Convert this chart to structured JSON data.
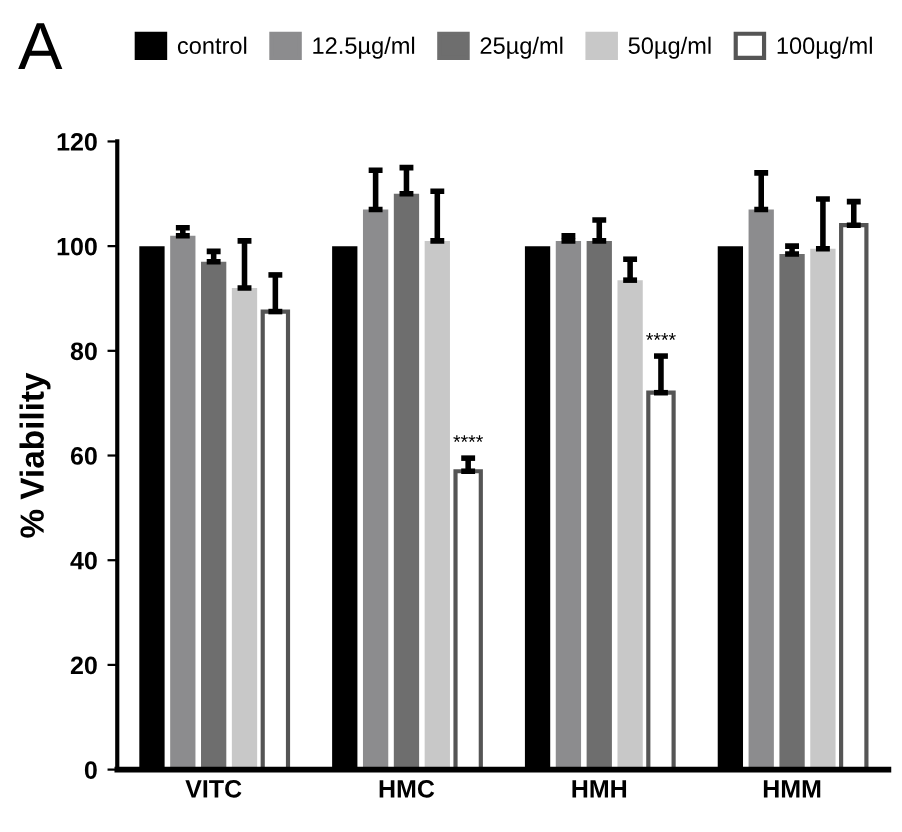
{
  "chart_data": {
    "type": "bar",
    "title": "A",
    "ylabel": "% Viability",
    "categories": [
      "VITC",
      "HMC",
      "HMH",
      "HMM"
    ],
    "series": [
      {
        "name": "control",
        "color": "#000000",
        "values": [
          100,
          100,
          100,
          100
        ]
      },
      {
        "name": "12.5µg/ml",
        "color": "#8c8c8e",
        "values": [
          102,
          107,
          101,
          107
        ],
        "errors": [
          [
            102,
            103.5
          ],
          [
            107,
            114.5
          ],
          [
            101,
            102
          ],
          [
            107,
            114
          ]
        ]
      },
      {
        "name": "25µg/ml",
        "color": "#6e6e6e",
        "values": [
          97,
          110,
          101,
          98.5
        ],
        "errors": [
          [
            97,
            99
          ],
          [
            110,
            115
          ],
          [
            101,
            105
          ],
          [
            98.5,
            100
          ]
        ]
      },
      {
        "name": "50µg/ml",
        "color": "#c8c8c8",
        "values": [
          92,
          101,
          93.5,
          99.5
        ],
        "errors": [
          [
            92,
            101
          ],
          [
            101,
            110.5
          ],
          [
            93.5,
            97.5
          ],
          [
            99.5,
            109
          ]
        ]
      },
      {
        "name": "100µg/ml",
        "color": "#ffffff",
        "values": [
          87.5,
          57,
          72,
          104
        ],
        "errors": [
          [
            87.5,
            94.5
          ],
          [
            57,
            59.5
          ],
          [
            72,
            79
          ],
          [
            104,
            108.5
          ]
        ]
      }
    ],
    "annotations": [
      "****",
      "****"
    ],
    "ylim": [
      0,
      120
    ],
    "yticks": [
      0,
      20,
      40,
      60,
      80,
      100,
      120
    ],
    "grid": false,
    "legend": "top"
  }
}
